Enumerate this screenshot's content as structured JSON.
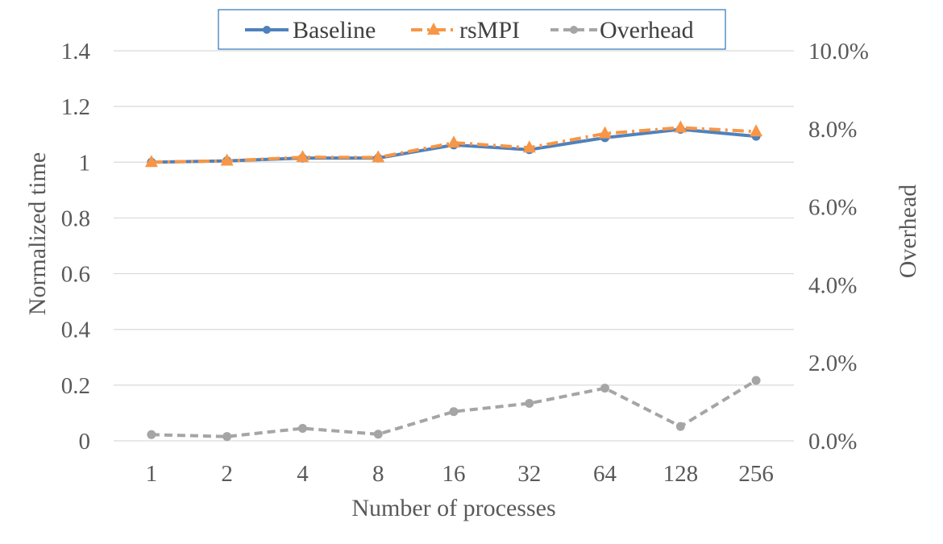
{
  "chart_data": {
    "type": "line",
    "title": "",
    "x": [
      "1",
      "2",
      "4",
      "8",
      "16",
      "32",
      "64",
      "128",
      "256"
    ],
    "xlabel": "Number of processes",
    "ylabel": "Normalized time",
    "ylabel_right": "Overhead",
    "ylim": [
      0,
      1.4
    ],
    "y_ticks": [
      "0",
      "0.2",
      "0.4",
      "0.6",
      "0.8",
      "1",
      "1.2",
      "1.4"
    ],
    "y_right_lim": [
      0,
      0.1
    ],
    "y_right_ticks": [
      "0.0%",
      "2.0%",
      "4.0%",
      "6.0%",
      "8.0%",
      "10.0%"
    ],
    "grid": true,
    "legend_position": "top",
    "series": [
      {
        "name": "Baseline",
        "axis": "left",
        "color": "#4f81bd",
        "style": "solid",
        "marker": "circle",
        "values": [
          1.0,
          1.005,
          1.015,
          1.015,
          1.062,
          1.045,
          1.088,
          1.118,
          1.093
        ]
      },
      {
        "name": "rsMPI",
        "axis": "left",
        "color": "#f79646",
        "style": "dashdot",
        "marker": "triangle",
        "values": [
          1.0,
          1.005,
          1.018,
          1.017,
          1.07,
          1.052,
          1.103,
          1.124,
          1.11
        ]
      },
      {
        "name": "Overhead",
        "axis": "right",
        "color": "#a5a5a5",
        "style": "dashed",
        "marker": "circle",
        "values": [
          0.0016,
          0.0011,
          0.0032,
          0.0017,
          0.0075,
          0.0096,
          0.0135,
          0.0037,
          0.0155
        ]
      }
    ]
  }
}
